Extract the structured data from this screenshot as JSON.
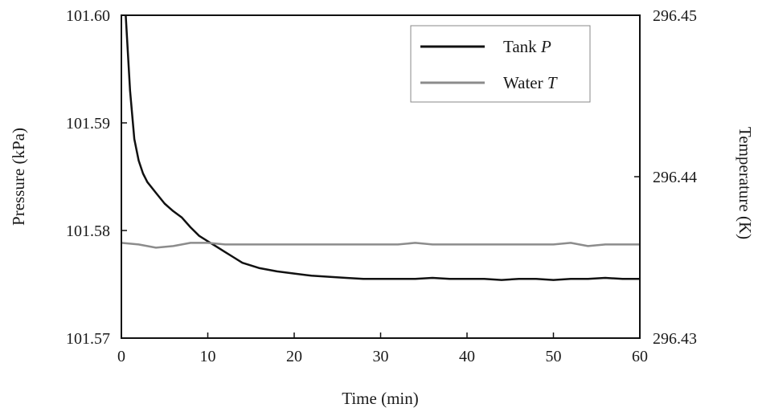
{
  "chart_data": {
    "type": "line",
    "xlabel": "Time (min)",
    "ylabel_left": "Pressure (kPa)",
    "ylabel_right": "Temperature (K)",
    "xlim": [
      0,
      60
    ],
    "ylim_left": [
      101.57,
      101.6
    ],
    "ylim_right": [
      296.43,
      296.45
    ],
    "x_ticks": [
      "0",
      "10",
      "20",
      "30",
      "40",
      "50",
      "60"
    ],
    "y_left_ticks": [
      "101.57",
      "101.58",
      "101.59",
      "101.60"
    ],
    "y_right_ticks": [
      "296.43",
      "296.44",
      "296.45"
    ],
    "grid": false,
    "legend_position": "top-right",
    "series": [
      {
        "name": "Tank",
        "name_italic": "P",
        "axis": "left",
        "color": "#111111",
        "x": [
          0.5,
          1,
          1.5,
          2,
          2.5,
          3,
          4,
          5,
          6,
          7,
          8,
          9,
          10,
          11,
          12,
          13,
          14,
          16,
          18,
          20,
          22,
          24,
          26,
          28,
          30,
          32,
          34,
          36,
          38,
          40,
          42,
          44,
          46,
          48,
          50,
          52,
          54,
          56,
          58,
          60
        ],
        "values": [
          101.6,
          101.593,
          101.5885,
          101.5865,
          101.5853,
          101.5845,
          101.5835,
          101.5825,
          101.5818,
          101.5812,
          101.5803,
          101.5795,
          101.579,
          101.5785,
          101.578,
          101.5775,
          101.577,
          101.5765,
          101.5762,
          101.576,
          101.5758,
          101.5757,
          101.5756,
          101.5755,
          101.5755,
          101.5755,
          101.5755,
          101.5756,
          101.5755,
          101.5755,
          101.5755,
          101.5754,
          101.5755,
          101.5755,
          101.5754,
          101.5755,
          101.5755,
          101.5756,
          101.5755,
          101.5755
        ]
      },
      {
        "name": "Water",
        "name_italic": "T",
        "axis": "right",
        "color": "#8c8c8c",
        "x": [
          0,
          2,
          4,
          6,
          8,
          10,
          12,
          14,
          16,
          18,
          20,
          22,
          24,
          26,
          28,
          30,
          32,
          34,
          36,
          38,
          40,
          42,
          44,
          46,
          48,
          50,
          52,
          54,
          56,
          58,
          60
        ],
        "values": [
          296.4359,
          296.4358,
          296.4356,
          296.4357,
          296.4359,
          296.4359,
          296.4358,
          296.4358,
          296.4358,
          296.4358,
          296.4358,
          296.4358,
          296.4358,
          296.4358,
          296.4358,
          296.4358,
          296.4358,
          296.4359,
          296.4358,
          296.4358,
          296.4358,
          296.4358,
          296.4358,
          296.4358,
          296.4358,
          296.4358,
          296.4359,
          296.4357,
          296.4358,
          296.4358,
          296.4358
        ]
      }
    ]
  }
}
